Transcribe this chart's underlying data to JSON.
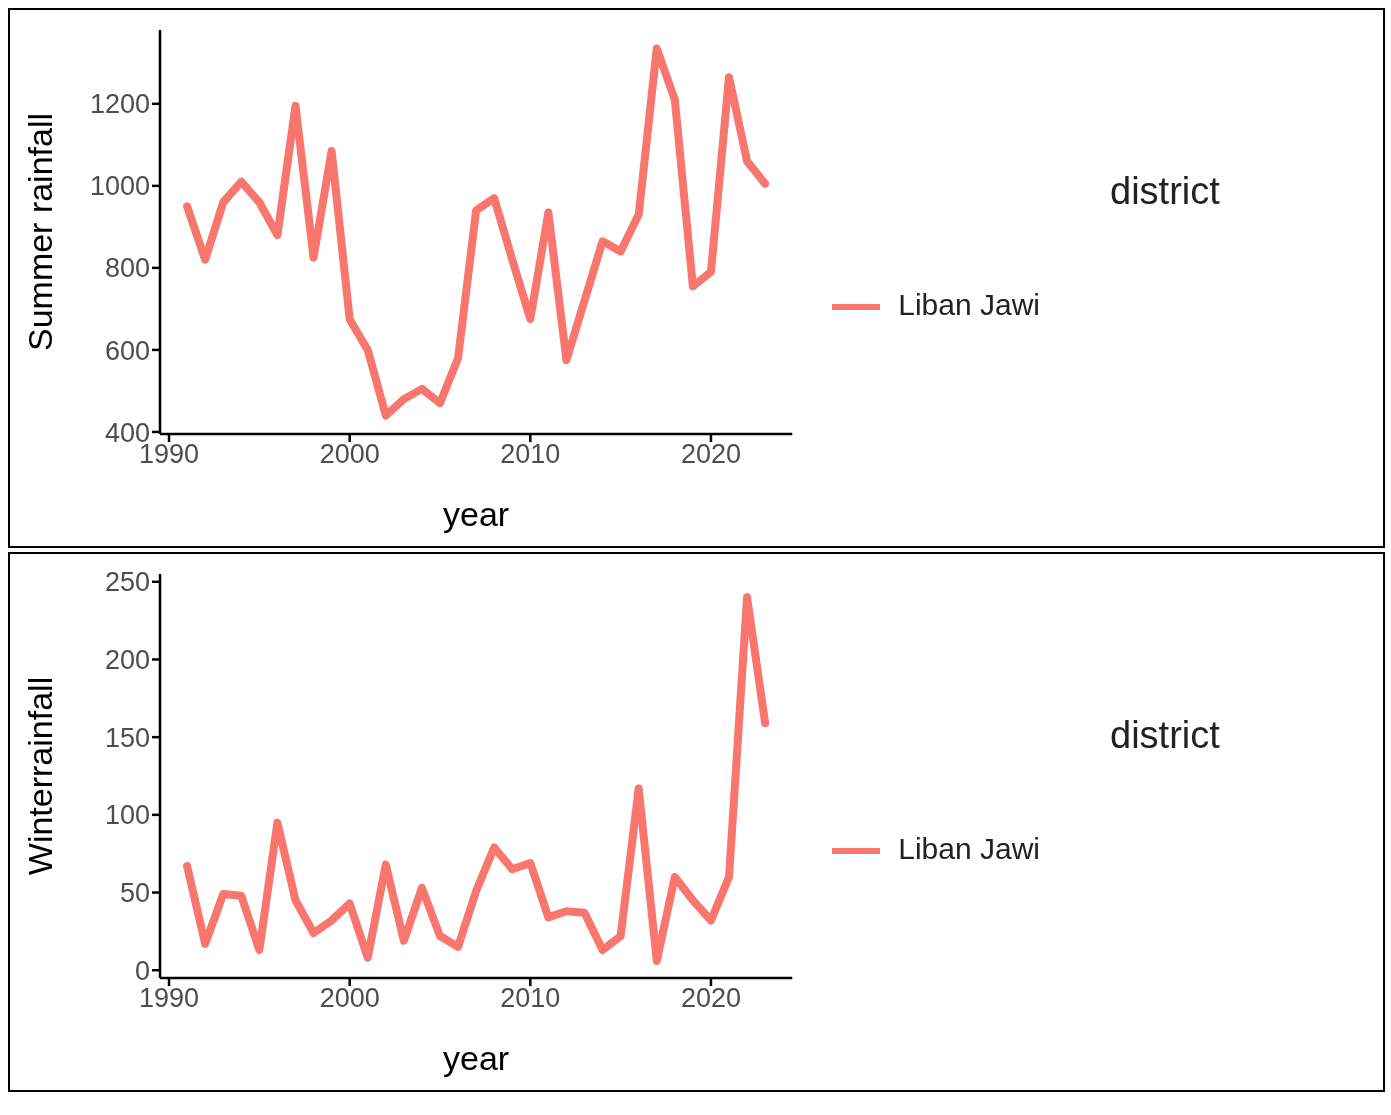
{
  "chart_data": [
    {
      "type": "line",
      "xlabel": "year",
      "ylabel": "Summer rainfall",
      "legend_title": "district",
      "legend": "right",
      "marker": "none",
      "line_style": "solid",
      "x": [
        1991,
        1992,
        1993,
        1994,
        1995,
        1996,
        1997,
        1998,
        1999,
        2000,
        2001,
        2002,
        2003,
        2004,
        2005,
        2006,
        2007,
        2008,
        2009,
        2010,
        2011,
        2012,
        2013,
        2014,
        2015,
        2016,
        2017,
        2018,
        2019,
        2020,
        2021,
        2022,
        2023
      ],
      "series": [
        {
          "name": "Liban Jawi",
          "color": "#f8766d",
          "values": [
            950,
            820,
            960,
            1010,
            960,
            880,
            1195,
            825,
            1085,
            675,
            600,
            440,
            480,
            505,
            470,
            580,
            940,
            970,
            820,
            675,
            935,
            575,
            720,
            865,
            840,
            930,
            1335,
            1210,
            755,
            790,
            1265,
            1060,
            1005
          ]
        }
      ],
      "xlim": [
        1989.5,
        2024.5
      ],
      "xticks": [
        1990,
        2000,
        2010,
        2020
      ],
      "ylim": [
        395,
        1380
      ],
      "yticks": [
        400,
        600,
        800,
        1000,
        1200
      ]
    },
    {
      "type": "line",
      "xlabel": "year",
      "ylabel": "Winterrainfall",
      "legend_title": "district",
      "legend": "right",
      "marker": "none",
      "line_style": "solid",
      "x": [
        1991,
        1992,
        1993,
        1994,
        1995,
        1996,
        1997,
        1998,
        1999,
        2000,
        2001,
        2002,
        2003,
        2004,
        2005,
        2006,
        2007,
        2008,
        2009,
        2010,
        2011,
        2012,
        2013,
        2014,
        2015,
        2016,
        2017,
        2018,
        2019,
        2020,
        2021,
        2022,
        2023
      ],
      "series": [
        {
          "name": "Liban Jawi",
          "color": "#f8766d",
          "values": [
            67,
            17,
            49,
            48,
            13,
            95,
            45,
            24,
            32,
            43,
            8,
            68,
            19,
            53,
            22,
            15,
            51,
            79,
            65,
            69,
            34,
            38,
            37,
            13,
            22,
            117,
            6,
            60,
            45,
            32,
            60,
            240,
            159
          ]
        }
      ],
      "xlim": [
        1989.5,
        2024.5
      ],
      "xticks": [
        1990,
        2000,
        2010,
        2020
      ],
      "ylim": [
        -5,
        255
      ],
      "yticks": [
        0,
        50,
        100,
        150,
        200,
        250
      ]
    }
  ]
}
